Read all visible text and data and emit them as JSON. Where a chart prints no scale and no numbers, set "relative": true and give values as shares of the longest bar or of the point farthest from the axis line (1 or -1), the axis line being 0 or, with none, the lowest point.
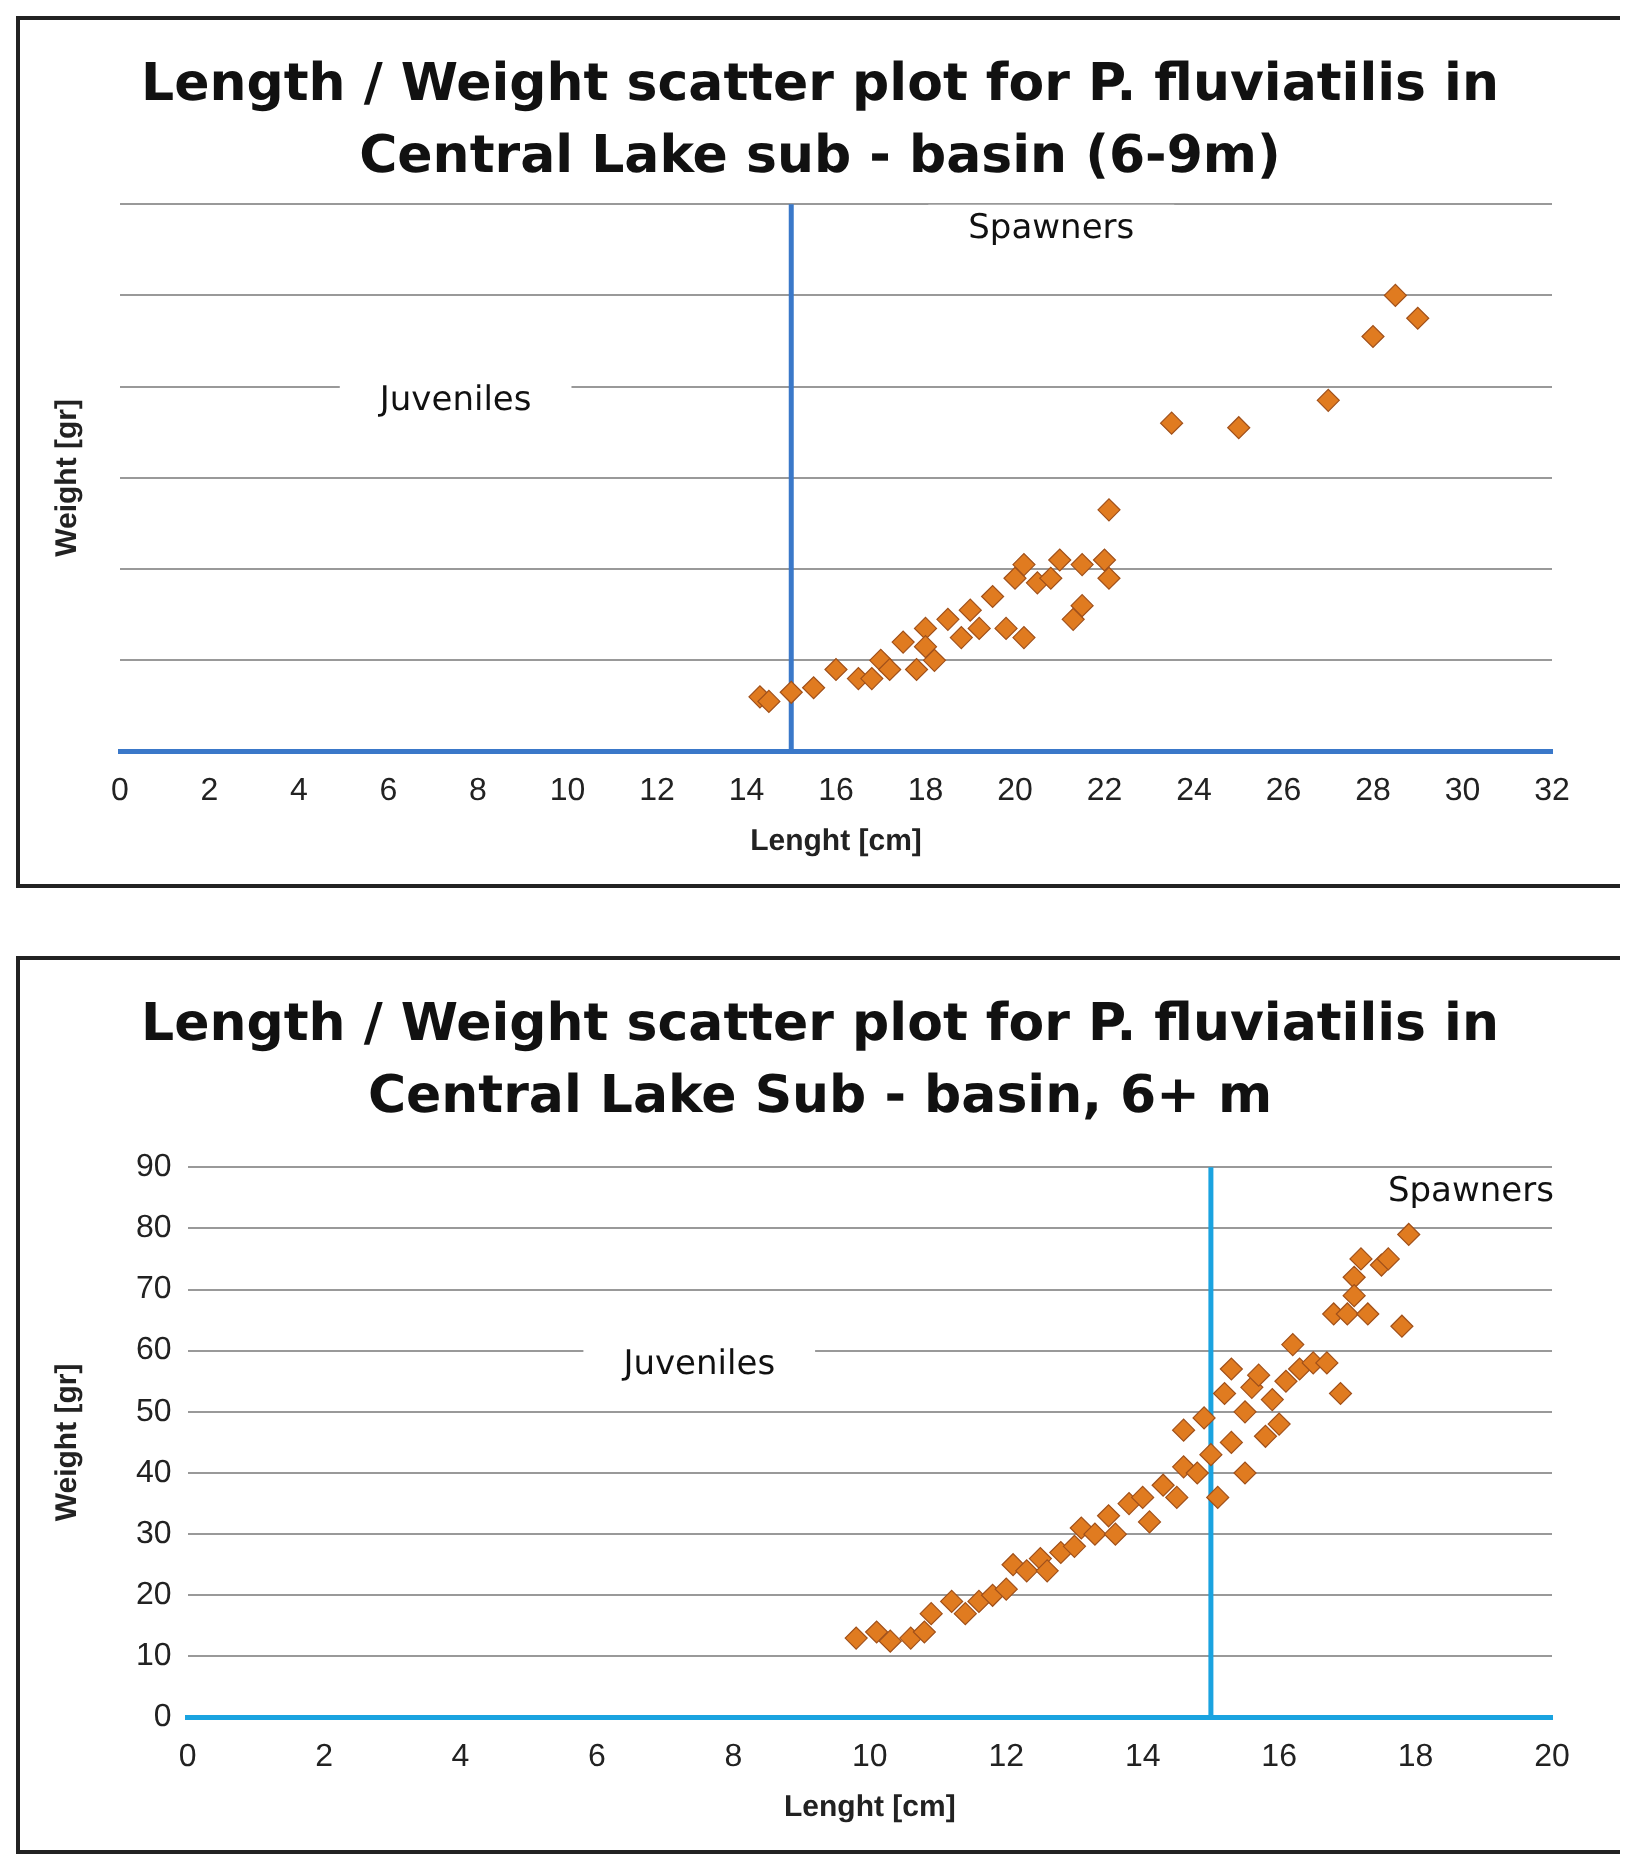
{
  "chart_data": [
    {
      "type": "scatter",
      "title": "Length / Weight scatter plot for P. fluviatilis in Central Lake sub - basin (6-9m)",
      "xlabel": "Lenght [cm]",
      "ylabel": "Weight [gr]",
      "annotations": [
        "Juveniles",
        "Spawners"
      ],
      "relative": true,
      "tick_labels": "x",
      "grid": "y",
      "marker": "diamond",
      "color": "#e07b20",
      "xlim": [
        0,
        32
      ],
      "xticks": [
        0,
        2,
        4,
        6,
        8,
        10,
        12,
        14,
        16,
        18,
        20,
        22,
        24,
        26,
        28,
        30,
        32
      ],
      "ref_lines": [
        {
          "axis": "x",
          "value": 15,
          "color": "#3a78c9"
        }
      ],
      "x": [
        14.3,
        14.5,
        15,
        15.5,
        16,
        16.5,
        16.8,
        17,
        17.2,
        17.5,
        17.8,
        18,
        18,
        18.2,
        18.5,
        18.8,
        19,
        19.2,
        19.5,
        19.8,
        20,
        20.2,
        20.2,
        20.5,
        20.8,
        21,
        21.3,
        21.5,
        21.5,
        22,
        22.1,
        22.1,
        23.5,
        25,
        27,
        28,
        28.5,
        29
      ],
      "values": [
        0.12,
        0.11,
        0.13,
        0.14,
        0.18,
        0.16,
        0.16,
        0.2,
        0.18,
        0.24,
        0.18,
        0.27,
        0.23,
        0.2,
        0.29,
        0.25,
        0.31,
        0.27,
        0.34,
        0.27,
        0.38,
        0.41,
        0.25,
        0.37,
        0.38,
        0.42,
        0.29,
        0.41,
        0.32,
        0.42,
        0.38,
        0.53,
        0.72,
        0.71,
        0.77,
        0.91,
        1,
        0.95
      ]
    },
    {
      "type": "scatter",
      "title": "Length / Weight scatter plot for P. fluviatilis in Central Lake Sub - basin, 6+ m",
      "xlabel": "Lenght [cm]",
      "ylabel": "Weight [gr]",
      "annotations": [
        "Juveniles",
        "Spawners"
      ],
      "grid": "y",
      "marker": "diamond",
      "color": "#e07b20",
      "xlim": [
        0,
        20
      ],
      "xticks": [
        0,
        2,
        4,
        6,
        8,
        10,
        12,
        14,
        16,
        18,
        20
      ],
      "ylim": [
        0,
        90
      ],
      "yticks": [
        0,
        10,
        20,
        30,
        40,
        50,
        60,
        70,
        80,
        90
      ],
      "ref_lines": [
        {
          "axis": "x",
          "value": 15,
          "color": "#1aa3e0"
        }
      ],
      "x": [
        9.8,
        10.1,
        10.3,
        10.6,
        10.8,
        10.9,
        11.2,
        11.4,
        11.6,
        11.8,
        12,
        12.1,
        12.3,
        12.5,
        12.6,
        12.8,
        13,
        13.1,
        13.3,
        13.5,
        13.6,
        13.8,
        14,
        14.1,
        14.3,
        14.5,
        14.6,
        14.6,
        14.8,
        15,
        14.9,
        15.1,
        15.2,
        15.3,
        15.3,
        15.5,
        15.5,
        15.6,
        15.7,
        15.8,
        15.9,
        16,
        16.1,
        16.2,
        16.3,
        16.5,
        16.7,
        16.9,
        16.8,
        17,
        17.1,
        17.1,
        17.2,
        17.3,
        17.5,
        17.6,
        17.8,
        17.9
      ],
      "values": [
        13,
        14,
        12.5,
        13,
        14,
        17,
        19,
        17,
        19,
        20,
        21,
        25,
        24,
        26,
        24,
        27,
        28,
        31,
        30,
        33,
        30,
        35,
        36,
        32,
        38,
        36,
        41,
        47,
        40,
        43,
        49,
        36,
        53,
        45,
        57,
        40,
        50,
        54,
        56,
        46,
        52,
        48,
        55,
        61,
        57,
        58,
        58,
        53,
        66,
        66,
        72,
        69,
        75,
        66,
        74,
        75,
        64,
        79
      ]
    }
  ]
}
